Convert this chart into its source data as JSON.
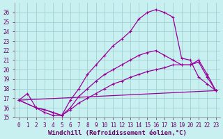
{
  "xlabel": "Windchill (Refroidissement éolien,°C)",
  "background_color": "#c8f0f0",
  "grid_color": "#99cccc",
  "line_color": "#990099",
  "xlim": [
    -0.5,
    23.5
  ],
  "ylim": [
    15,
    27
  ],
  "yticks": [
    15,
    16,
    17,
    18,
    19,
    20,
    21,
    22,
    23,
    24,
    25,
    26
  ],
  "xticks": [
    0,
    1,
    2,
    3,
    4,
    5,
    6,
    7,
    8,
    9,
    10,
    11,
    12,
    13,
    14,
    15,
    16,
    17,
    18,
    19,
    20,
    21,
    22,
    23
  ],
  "curve1_x": [
    0,
    1,
    2,
    3,
    4,
    5,
    6,
    7,
    8,
    9,
    10,
    11,
    12,
    13,
    14,
    15,
    16,
    17,
    18,
    19,
    20,
    21,
    22,
    23
  ],
  "curve1_y": [
    16.8,
    17.5,
    16.0,
    15.5,
    15.2,
    15.2,
    16.8,
    18.0,
    19.5,
    20.5,
    21.5,
    22.5,
    23.2,
    24.0,
    25.3,
    26.0,
    26.3,
    26.0,
    25.5,
    21.2,
    21.0,
    19.2,
    18.5,
    17.8
  ],
  "curve2_x": [
    0,
    2,
    3,
    4,
    5,
    6,
    7,
    8,
    9,
    10,
    11,
    12,
    13,
    14,
    15,
    16,
    17,
    18,
    19,
    20,
    21,
    22,
    23
  ],
  "curve2_y": [
    16.8,
    16.0,
    15.8,
    15.5,
    15.2,
    16.0,
    17.2,
    18.0,
    18.8,
    19.5,
    20.0,
    20.5,
    21.0,
    21.5,
    21.8,
    22.0,
    21.5,
    21.0,
    20.5,
    20.5,
    21.0,
    19.5,
    17.8
  ],
  "curve3_x": [
    0,
    2,
    3,
    4,
    5,
    6,
    7,
    8,
    9,
    10,
    11,
    12,
    13,
    14,
    15,
    16,
    17,
    18,
    19,
    20,
    21,
    22,
    23
  ],
  "curve3_y": [
    16.8,
    16.0,
    15.8,
    15.5,
    15.2,
    15.8,
    16.5,
    17.0,
    17.5,
    18.0,
    18.5,
    18.8,
    19.2,
    19.5,
    19.8,
    20.0,
    20.2,
    20.5,
    20.5,
    20.5,
    20.8,
    19.2,
    17.8
  ],
  "curve4_x": [
    0,
    23
  ],
  "curve4_y": [
    16.8,
    17.8
  ],
  "markersize": 3,
  "linewidth": 0.9,
  "tick_fontsize": 5.5,
  "xlabel_fontsize": 6.5,
  "tick_color": "#660066",
  "xlabel_color": "#660066"
}
